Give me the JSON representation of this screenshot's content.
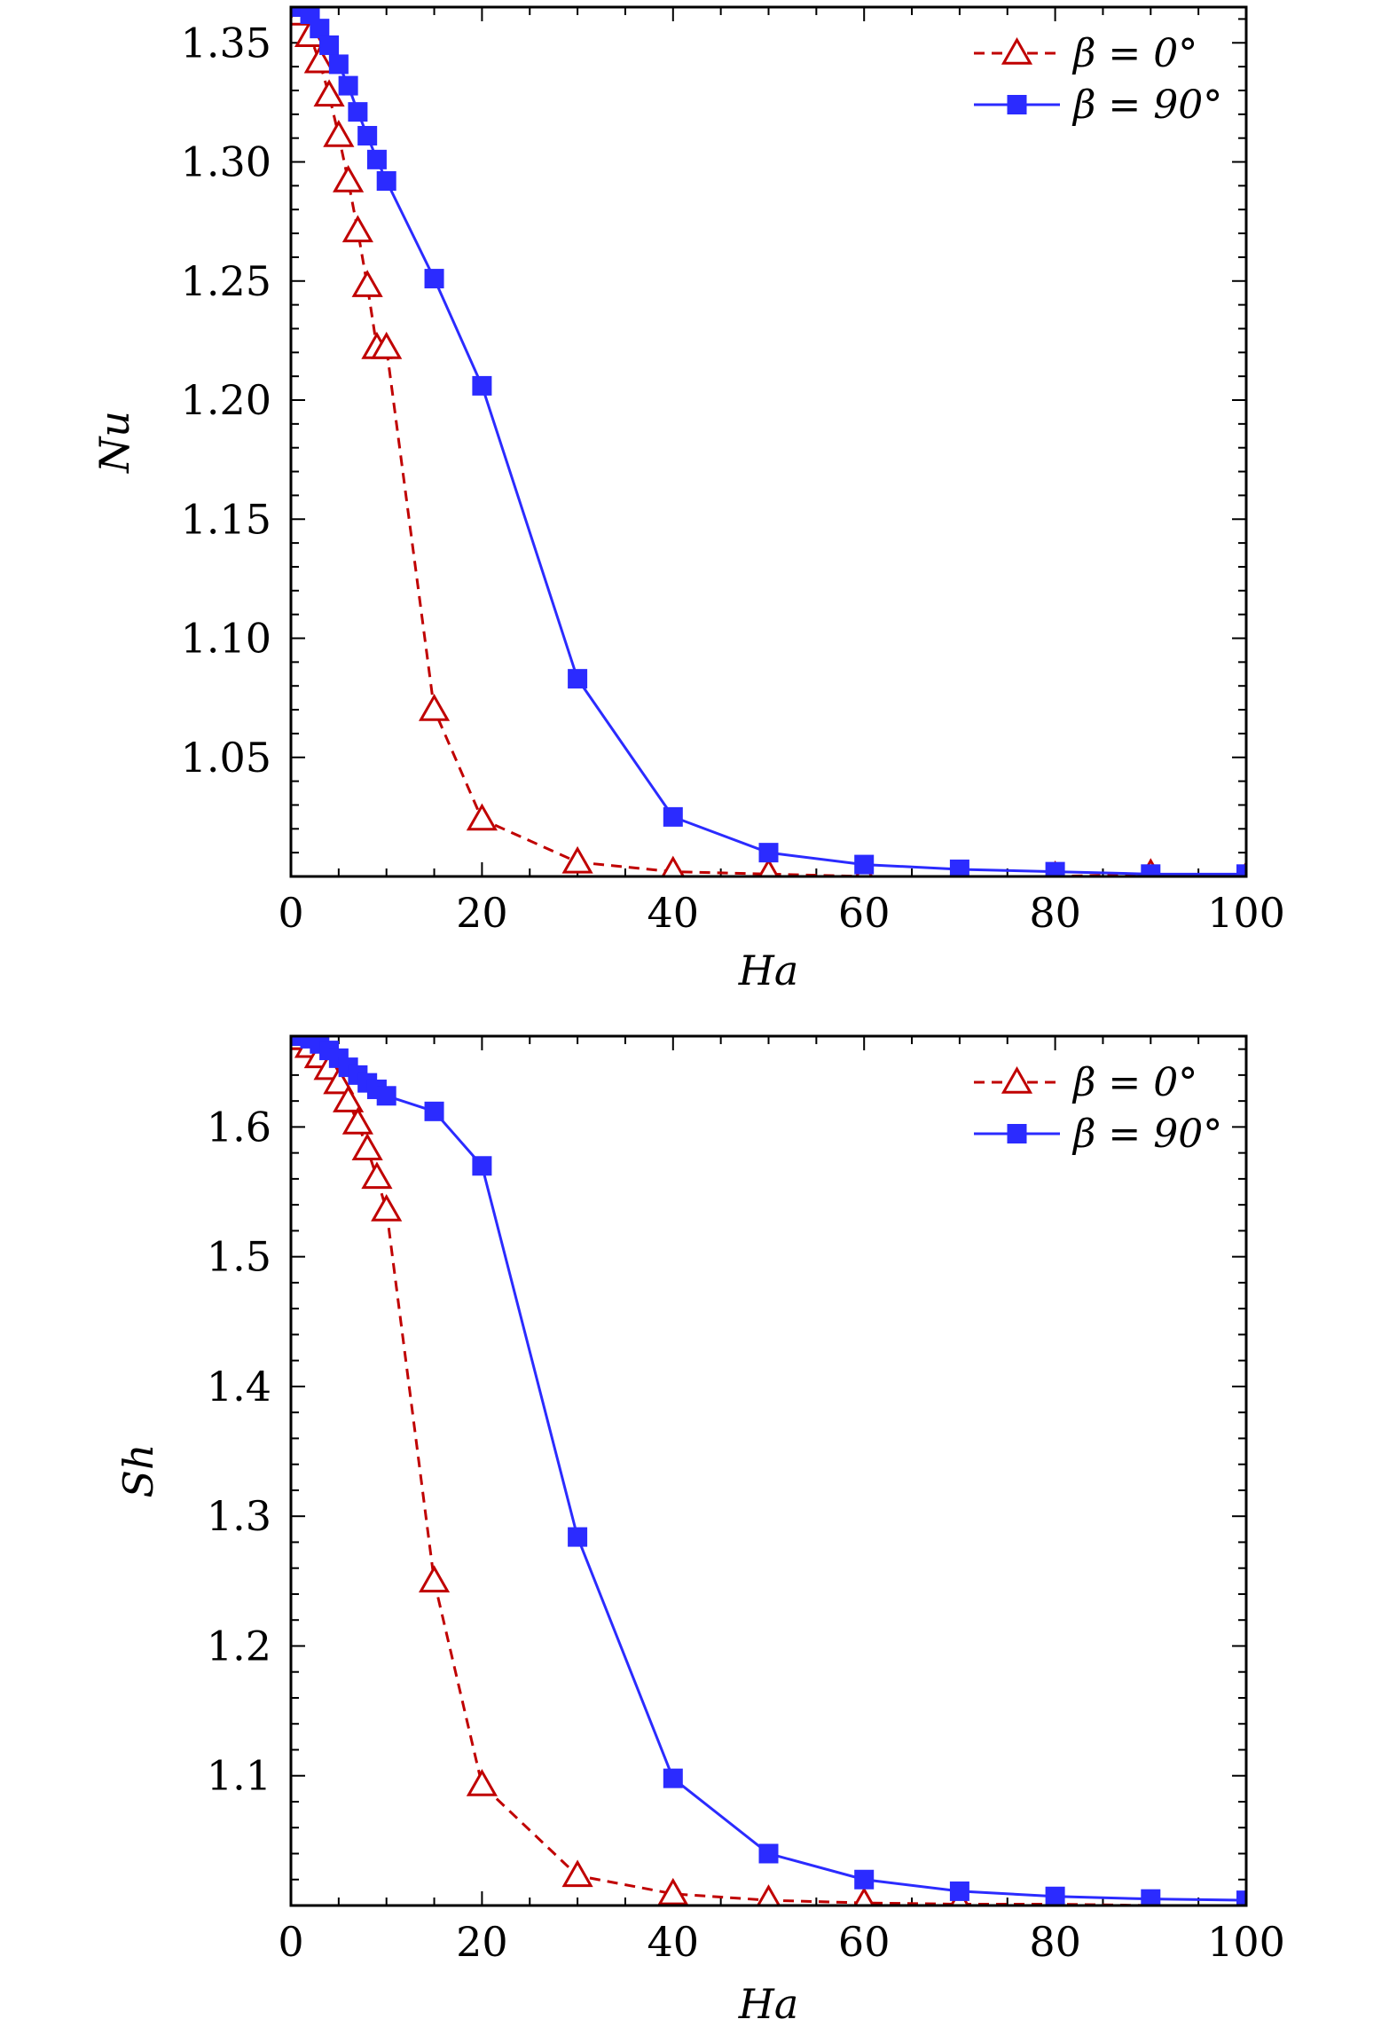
{
  "chart_data": [
    {
      "type": "line",
      "xlabel": "Ha",
      "ylabel": "Nu",
      "xlim": [
        0,
        100
      ],
      "ylim": [
        1.0,
        1.365
      ],
      "xticks": [
        "0",
        "20",
        "40",
        "60",
        "80",
        "100"
      ],
      "xtick_values": [
        0,
        20,
        40,
        60,
        80,
        100
      ],
      "yticks": [
        "1.05",
        "1.10",
        "1.15",
        "1.20",
        "1.25",
        "1.30",
        "1.35"
      ],
      "ytick_values": [
        1.05,
        1.1,
        1.15,
        1.2,
        1.25,
        1.3,
        1.35
      ],
      "legend_position": "top-right",
      "series": [
        {
          "name": "β = 0°",
          "color": "#c00000",
          "marker": "open-triangle",
          "line": "dashed",
          "x": [
            1,
            2,
            3,
            4,
            5,
            6,
            7,
            8,
            9,
            10,
            15,
            20,
            30,
            40,
            50,
            60,
            70,
            80,
            90,
            100
          ],
          "y": [
            1.362,
            1.353,
            1.342,
            1.328,
            1.311,
            1.292,
            1.271,
            1.248,
            1.222,
            1.222,
            1.07,
            1.024,
            1.006,
            1.002,
            1.001,
            1.0,
            1.0,
            1.0,
            1.001,
            1.0
          ]
        },
        {
          "name": "β = 90°",
          "color": "#2b2bff",
          "marker": "filled-square",
          "line": "solid",
          "x": [
            1,
            2,
            3,
            4,
            5,
            6,
            7,
            8,
            9,
            10,
            15,
            20,
            30,
            40,
            50,
            60,
            70,
            80,
            90,
            100
          ],
          "y": [
            1.365,
            1.362,
            1.356,
            1.349,
            1.341,
            1.332,
            1.321,
            1.311,
            1.301,
            1.292,
            1.251,
            1.206,
            1.083,
            1.025,
            1.01,
            1.005,
            1.003,
            1.002,
            1.001,
            1.001
          ]
        }
      ]
    },
    {
      "type": "line",
      "xlabel": "Ha",
      "ylabel": "Sh",
      "xlim": [
        0,
        100
      ],
      "ylim": [
        1.0,
        1.67
      ],
      "xticks": [
        "0",
        "20",
        "40",
        "60",
        "80",
        "100"
      ],
      "xtick_values": [
        0,
        20,
        40,
        60,
        80,
        100
      ],
      "yticks": [
        "1.1",
        "1.2",
        "1.3",
        "1.4",
        "1.5",
        "1.6"
      ],
      "ytick_values": [
        1.1,
        1.2,
        1.3,
        1.4,
        1.5,
        1.6
      ],
      "legend_position": "top-right",
      "series": [
        {
          "name": "β = 0°",
          "color": "#c00000",
          "marker": "open-triangle",
          "line": "dashed",
          "x": [
            1,
            2,
            3,
            4,
            5,
            6,
            7,
            8,
            9,
            10,
            15,
            20,
            30,
            40,
            50,
            60,
            70,
            80,
            90,
            100
          ],
          "y": [
            1.668,
            1.662,
            1.654,
            1.645,
            1.634,
            1.62,
            1.603,
            1.583,
            1.561,
            1.536,
            1.25,
            1.093,
            1.023,
            1.009,
            1.004,
            1.002,
            1.001,
            1.001,
            1.0,
            1.0
          ]
        },
        {
          "name": "β = 90°",
          "color": "#2b2bff",
          "marker": "filled-square",
          "line": "solid",
          "x": [
            1,
            2,
            3,
            4,
            5,
            6,
            7,
            8,
            9,
            10,
            15,
            20,
            30,
            40,
            50,
            60,
            70,
            80,
            90,
            100
          ],
          "y": [
            1.67,
            1.668,
            1.664,
            1.659,
            1.653,
            1.646,
            1.64,
            1.634,
            1.629,
            1.624,
            1.612,
            1.57,
            1.284,
            1.098,
            1.04,
            1.02,
            1.011,
            1.007,
            1.005,
            1.004
          ]
        }
      ]
    }
  ]
}
